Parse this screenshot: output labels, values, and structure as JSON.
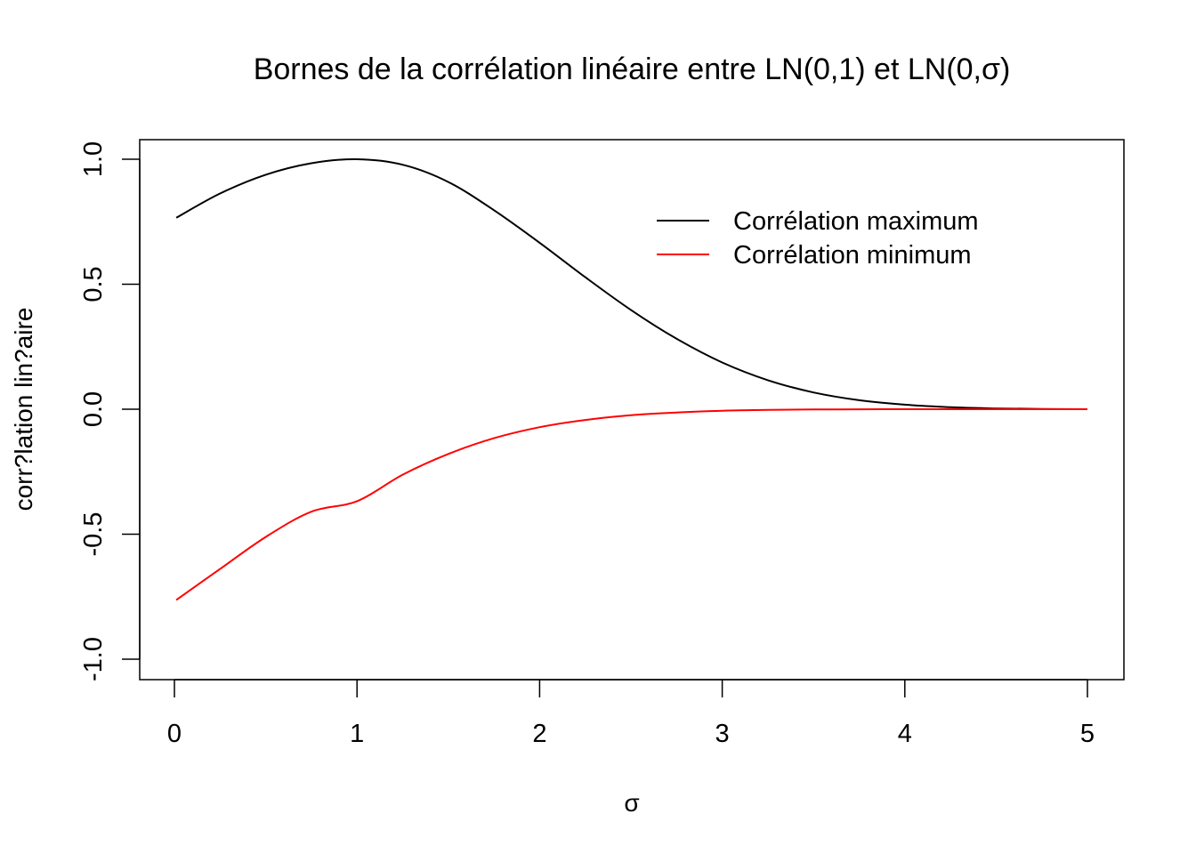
{
  "chart_data": {
    "type": "line",
    "title": "Bornes de la corrélation linéaire entre LN(0,1) et LN(0,σ)",
    "xlabel": "σ",
    "ylabel": "corr?lation lin?aire",
    "xlim": [
      0,
      5
    ],
    "ylim": [
      -1,
      1
    ],
    "x_ticks": [
      "0",
      "1",
      "2",
      "3",
      "4",
      "5"
    ],
    "y_ticks": [
      "-1.0",
      "-0.5",
      "0.0",
      "0.5",
      "1.0"
    ],
    "grid": false,
    "legend_position": "top-right",
    "x": [
      0.01,
      0.25,
      0.5,
      0.75,
      1.0,
      1.25,
      1.5,
      1.75,
      2.0,
      2.25,
      2.5,
      2.75,
      3.0,
      3.25,
      3.5,
      3.75,
      4.0,
      4.25,
      4.5,
      4.75,
      5.0
    ],
    "series": [
      {
        "name": "Corrélation maximum",
        "color": "#000000",
        "values": [
          0.766,
          0.863,
          0.938,
          0.984,
          1.0,
          0.978,
          0.909,
          0.796,
          0.666,
          0.528,
          0.397,
          0.282,
          0.187,
          0.116,
          0.067,
          0.036,
          0.018,
          0.008,
          0.003,
          0.001,
          0.0
        ]
      },
      {
        "name": "Corrélation minimum",
        "color": "#ff0000",
        "values": [
          -0.763,
          -0.639,
          -0.511,
          -0.41,
          -0.368,
          -0.262,
          -0.179,
          -0.116,
          -0.072,
          -0.043,
          -0.024,
          -0.013,
          -0.006,
          -0.003,
          -0.001,
          -0.0005,
          0.0,
          0.0,
          0.0,
          0.0,
          0.0
        ]
      }
    ]
  }
}
